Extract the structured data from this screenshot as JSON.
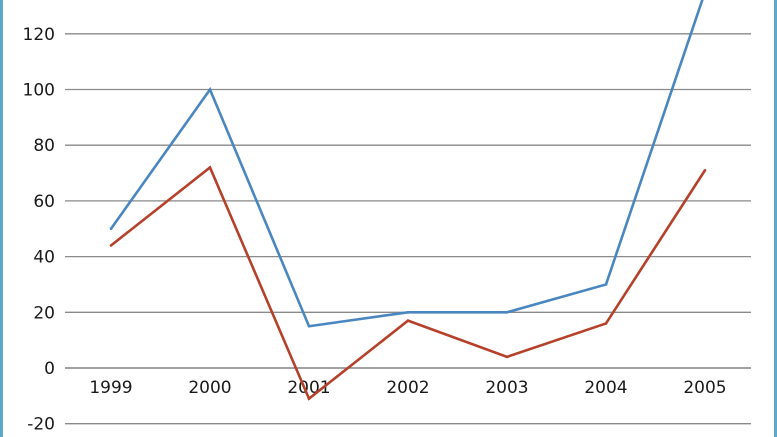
{
  "chart_data": {
    "type": "line",
    "title": "",
    "xlabel": "",
    "ylabel": "",
    "categories": [
      "1999",
      "2000",
      "2001",
      "2002",
      "2003",
      "2004",
      "2005"
    ],
    "ylim": [
      -20,
      130
    ],
    "yticks": [
      -20,
      0,
      20,
      40,
      60,
      80,
      100,
      120
    ],
    "grid": true,
    "series": [
      {
        "color": "#4a86c0",
        "values": [
          50,
          100,
          15,
          20,
          20,
          30,
          135
        ]
      },
      {
        "color": "#b5412a",
        "values": [
          44,
          72,
          -11,
          17,
          4,
          16,
          71
        ]
      }
    ]
  }
}
